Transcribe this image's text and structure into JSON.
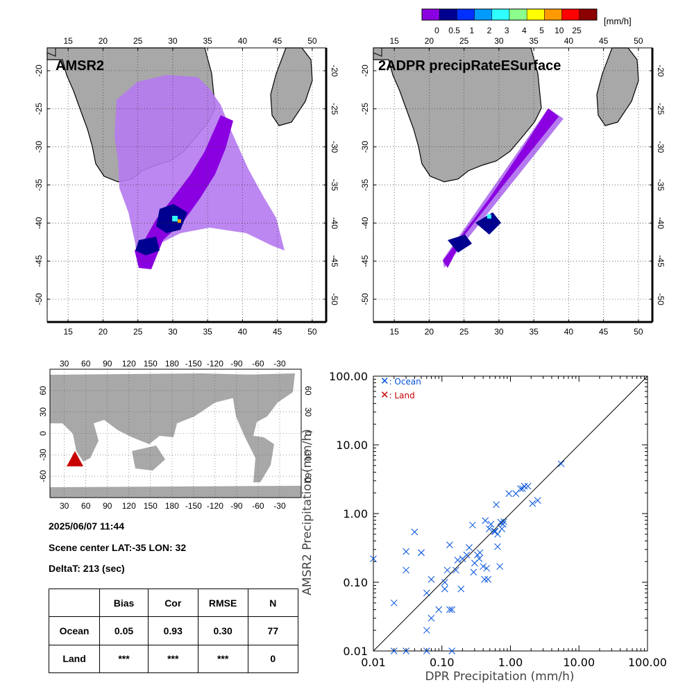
{
  "colorbar": {
    "unit": "[mm/h]",
    "tick_labels": [
      "0",
      "0.5",
      "1",
      "2",
      "3",
      "4",
      "5",
      "10",
      "25"
    ],
    "colors": [
      "#8b00e0",
      "#000090",
      "#0030ff",
      "#009bff",
      "#30ffff",
      "#8bff8b",
      "#ffff00",
      "#ff9a00",
      "#ff0000",
      "#8b0000"
    ]
  },
  "map_left": {
    "title": "AMSR2",
    "lon_ticks": [
      "15",
      "20",
      "25",
      "30",
      "35",
      "40",
      "45",
      "50"
    ],
    "lat_ticks": [
      "-20",
      "-25",
      "-30",
      "-35",
      "-40",
      "-45",
      "-50"
    ]
  },
  "map_right": {
    "title": "2ADPR precipRateESurface",
    "lon_ticks": [
      "15",
      "20",
      "25",
      "30",
      "35",
      "40",
      "45",
      "50"
    ],
    "lat_ticks": [
      "-20",
      "-25",
      "-30",
      "-35",
      "-40",
      "-45",
      "-50"
    ]
  },
  "world_map": {
    "lon_ticks": [
      "30",
      "60",
      "90",
      "120",
      "150",
      "180",
      "-150",
      "-120",
      "-90",
      "-60",
      "-30"
    ],
    "lat_ticks": [
      "60",
      "30",
      "0",
      "-30",
      "-60"
    ]
  },
  "info": {
    "datetime": "2025/06/07 11:44",
    "scene_center": "Scene center LAT:-35   LON:  32",
    "delta_t": "DeltaT:  213 (sec)"
  },
  "stats_table": {
    "headers": [
      "",
      "Bias",
      "Cor",
      "RMSE",
      "N"
    ],
    "rows": [
      [
        "Ocean",
        "0.05",
        "0.93",
        "0.30",
        "77"
      ],
      [
        "Land",
        "***",
        "***",
        "***",
        "0"
      ]
    ]
  },
  "colors": {
    "ocean": "#0050dc",
    "land": "#c80000",
    "land_gray": "#a8a8a8",
    "marker_red": "#c80000"
  },
  "chart_data": {
    "type": "scatter",
    "xlabel": "DPR Precipitation (mm/h)",
    "ylabel": "AMSR2 Precipitation (mm/h)",
    "xscale": "log",
    "yscale": "log",
    "xlim": [
      0.01,
      100
    ],
    "ylim": [
      0.01,
      100
    ],
    "tick_labels": [
      "0.01",
      "0.10",
      "1.00",
      "10.00",
      "100.00"
    ],
    "legend": [
      "X  : Ocean",
      "X  : Land"
    ],
    "legend_position": "top-left",
    "series": [
      {
        "name": ": Ocean",
        "color": "#0050dc",
        "points": [
          [
            0.01,
            0.22
          ],
          [
            0.02,
            0.05
          ],
          [
            0.02,
            0.01
          ],
          [
            0.03,
            0.01
          ],
          [
            0.03,
            0.28
          ],
          [
            0.03,
            0.15
          ],
          [
            0.04,
            0.54
          ],
          [
            0.05,
            0.27
          ],
          [
            0.05,
            0.27
          ],
          [
            0.06,
            0.02
          ],
          [
            0.06,
            0.07
          ],
          [
            0.06,
            0.01
          ],
          [
            0.07,
            0.03
          ],
          [
            0.07,
            0.11
          ],
          [
            0.09,
            0.04
          ],
          [
            0.11,
            0.1
          ],
          [
            0.11,
            0.08
          ],
          [
            0.12,
            0.15
          ],
          [
            0.13,
            0.35
          ],
          [
            0.13,
            0.04
          ],
          [
            0.14,
            0.04
          ],
          [
            0.14,
            0.01
          ],
          [
            0.16,
            0.15
          ],
          [
            0.17,
            0.21
          ],
          [
            0.19,
            0.08
          ],
          [
            0.2,
            0.22
          ],
          [
            0.23,
            0.25
          ],
          [
            0.25,
            0.32
          ],
          [
            0.28,
            0.68
          ],
          [
            0.29,
            0.14
          ],
          [
            0.3,
            0.19
          ],
          [
            0.33,
            0.25
          ],
          [
            0.35,
            0.22
          ],
          [
            0.36,
            0.27
          ],
          [
            0.4,
            0.17
          ],
          [
            0.42,
            0.11
          ],
          [
            0.43,
            0.79
          ],
          [
            0.45,
            0.16
          ],
          [
            0.47,
            0.11
          ],
          [
            0.49,
            0.6
          ],
          [
            0.52,
            0.7
          ],
          [
            0.58,
            0.55
          ],
          [
            0.6,
            0.55
          ],
          [
            0.62,
            1.35
          ],
          [
            0.65,
            0.33
          ],
          [
            0.65,
            0.5
          ],
          [
            0.7,
            0.17
          ],
          [
            0.72,
            0.75
          ],
          [
            0.75,
            0.6
          ],
          [
            0.78,
            0.7
          ],
          [
            0.8,
            0.76
          ],
          [
            0.95,
            1.95
          ],
          [
            1.2,
            1.95
          ],
          [
            1.4,
            2.3
          ],
          [
            1.5,
            2.3
          ],
          [
            1.6,
            2.5
          ],
          [
            1.8,
            2.5
          ],
          [
            2.1,
            1.4
          ],
          [
            2.5,
            1.55
          ],
          [
            5.5,
            5.3
          ]
        ]
      },
      {
        "name": ": Land",
        "color": "#c80000",
        "points": []
      }
    ]
  }
}
